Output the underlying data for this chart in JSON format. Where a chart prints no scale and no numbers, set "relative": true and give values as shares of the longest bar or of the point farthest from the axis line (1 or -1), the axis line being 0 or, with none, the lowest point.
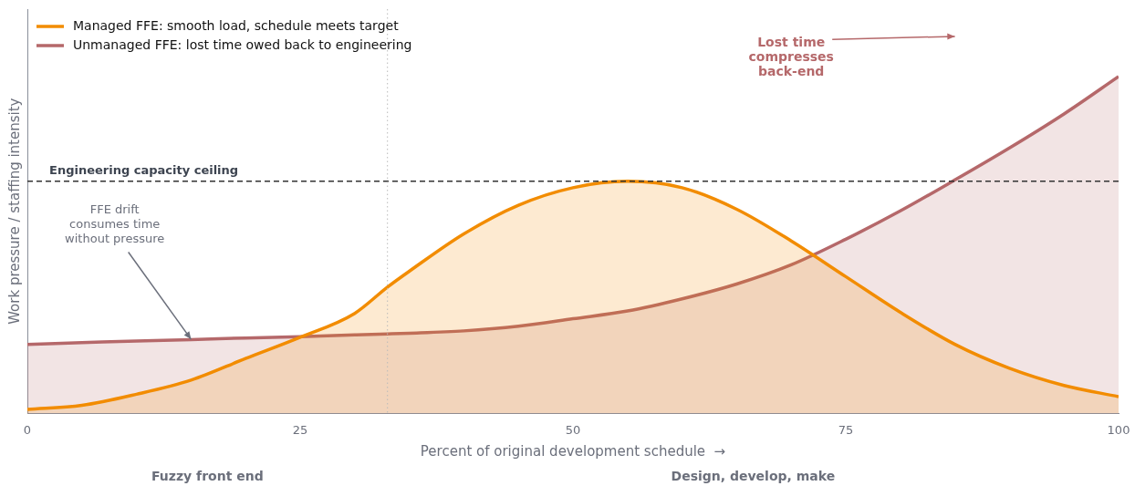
{
  "chart_data": {
    "type": "area",
    "relative": true,
    "xlabel": "Percent of original development schedule  →",
    "ylabel": "Work pressure / staffing intensity",
    "x": [
      0,
      5,
      10,
      15,
      20,
      25,
      30,
      33,
      35,
      40,
      45,
      50,
      55,
      60,
      65,
      70,
      75,
      80,
      85,
      90,
      95,
      100
    ],
    "xlim": [
      0,
      100
    ],
    "xticks": [
      0,
      25,
      50,
      75,
      100
    ],
    "grid": false,
    "legend": "top left",
    "marker": "none",
    "line_style": "solid",
    "series": [
      {
        "name": "Managed FFE: smooth load, schedule meets target",
        "color": "#f28c00",
        "values": [
          0.012,
          0.024,
          0.057,
          0.099,
          0.163,
          0.226,
          0.297,
          0.375,
          0.422,
          0.533,
          0.618,
          0.67,
          0.689,
          0.67,
          0.606,
          0.512,
          0.406,
          0.3,
          0.205,
          0.134,
          0.083,
          0.05
        ]
      },
      {
        "name": "Unmanaged FFE: lost time owed back to engineering",
        "color": "#b5686a",
        "values": [
          0.205,
          0.21,
          0.215,
          0.219,
          0.224,
          0.228,
          0.233,
          0.236,
          0.238,
          0.245,
          0.259,
          0.281,
          0.304,
          0.34,
          0.384,
          0.441,
          0.517,
          0.601,
          0.693,
          0.788,
          0.889,
          1.0
        ]
      }
    ],
    "ref_lines": [
      {
        "axis": "y",
        "value": 0.689,
        "label": "Engineering capacity ceiling",
        "line_style": "dashed",
        "color": "#333333"
      },
      {
        "axis": "x",
        "value": 33,
        "line_style": "dotted",
        "color": "#bbbbbb"
      }
    ],
    "annotations": [
      {
        "text": "FFE drift\nconsumes time\nwithout pressure",
        "x": 15,
        "y": 0.22
      },
      "Lost time\ncompresses\nback-end",
      "Fuzzy front end",
      "Design, develop, make"
    ]
  }
}
